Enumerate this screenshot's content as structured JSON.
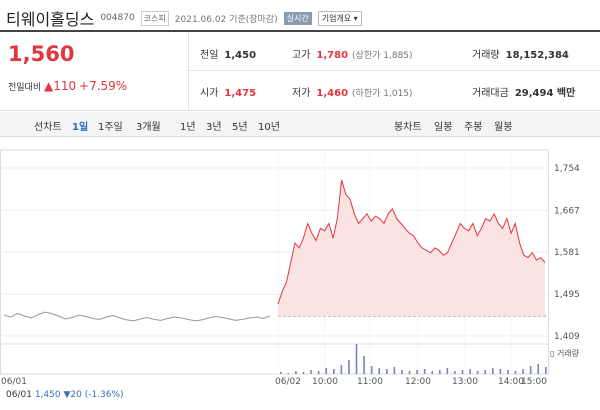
{
  "header": {
    "title": "티웨이홀딩스",
    "code": "004870",
    "market": "코스피",
    "date": "2021.06.02 기준(장마감)",
    "realtime": "실시간",
    "company": "기업개요 ▾"
  },
  "quote": {
    "price": "1,560",
    "change_label": "전일대비",
    "change": "▲110",
    "change_pct": "+7.59%"
  },
  "stats": [
    [
      {
        "label": "전일",
        "value": "1,450"
      },
      {
        "label": "고가",
        "value": "1,780",
        "note": "(상한가 1,885)"
      },
      {
        "label": "거래량",
        "value": "18,152,384"
      }
    ],
    [
      {
        "label": "시가",
        "value": "1,475"
      },
      {
        "label": "저가",
        "value": "1,460",
        "note": "(하한가 1,015)"
      },
      {
        "label": "거래대금",
        "value": "29,494 백만"
      }
    ]
  ],
  "tabs": {
    "line_label": "선차트",
    "line": [
      "1일",
      "1주일",
      "3개월",
      "1년",
      "3년",
      "5년",
      "10년"
    ],
    "candle_label": "봉차트",
    "candle": [
      "일봉",
      "주봉",
      "월봉"
    ]
  },
  "chart_data": {
    "type": "line",
    "ylim": [
      1409,
      1754
    ],
    "yticks": [
      {
        "value": 1754,
        "label": "1,754"
      },
      {
        "value": 1667,
        "label": "1,667"
      },
      {
        "value": 1581,
        "label": "1,581"
      },
      {
        "value": 1495,
        "label": "1,495"
      },
      {
        "value": 1409,
        "label": "1,409"
      }
    ],
    "xlabels": [
      "06/01",
      "06/02",
      "10:00",
      "11:00",
      "12:00",
      "13:00",
      "14:00",
      "15:00"
    ],
    "base_value": 1450,
    "series": [
      {
        "color": "#999999",
        "values": [
          1452,
          1448,
          1455,
          1450,
          1446,
          1453,
          1458,
          1455,
          1450,
          1444,
          1447,
          1452,
          1449,
          1445,
          1443,
          1448,
          1451,
          1446,
          1442,
          1440,
          1444,
          1447,
          1443,
          1441,
          1445,
          1448,
          1446,
          1443,
          1440,
          1442,
          1446,
          1449,
          1447,
          1444,
          1441,
          1443,
          1446,
          1448,
          1445,
          1450
        ]
      },
      {
        "color": "#e0363d",
        "values": [
          1475,
          1500,
          1520,
          1560,
          1600,
          1590,
          1610,
          1640,
          1620,
          1605,
          1630,
          1625,
          1640,
          1610,
          1650,
          1729,
          1700,
          1690,
          1660,
          1640,
          1650,
          1660,
          1645,
          1655,
          1650,
          1640,
          1660,
          1670,
          1650,
          1640,
          1630,
          1620,
          1615,
          1600,
          1590,
          1585,
          1580,
          1590,
          1585,
          1575,
          1580,
          1600,
          1620,
          1640,
          1630,
          1625,
          1640,
          1615,
          1630,
          1650,
          1645,
          1660,
          1640,
          1630,
          1650,
          1620,
          1640,
          1600,
          1575,
          1570,
          1580,
          1565,
          1570,
          1560
        ]
      }
    ],
    "volume_label": "▯ 거래량",
    "volume_color": "#7b7fc4",
    "volume": [
      2,
      1,
      3,
      2,
      4,
      3,
      6,
      5,
      9,
      14,
      30,
      18,
      8,
      6,
      5,
      7,
      4,
      3,
      4,
      5,
      3,
      4,
      6,
      3,
      4,
      5,
      3,
      4,
      6,
      5,
      4,
      3,
      5,
      8,
      10,
      7
    ]
  },
  "footer": {
    "date": "06/01",
    "price": "1,450",
    "change": "▼20",
    "pct": "(-1.36%)"
  }
}
